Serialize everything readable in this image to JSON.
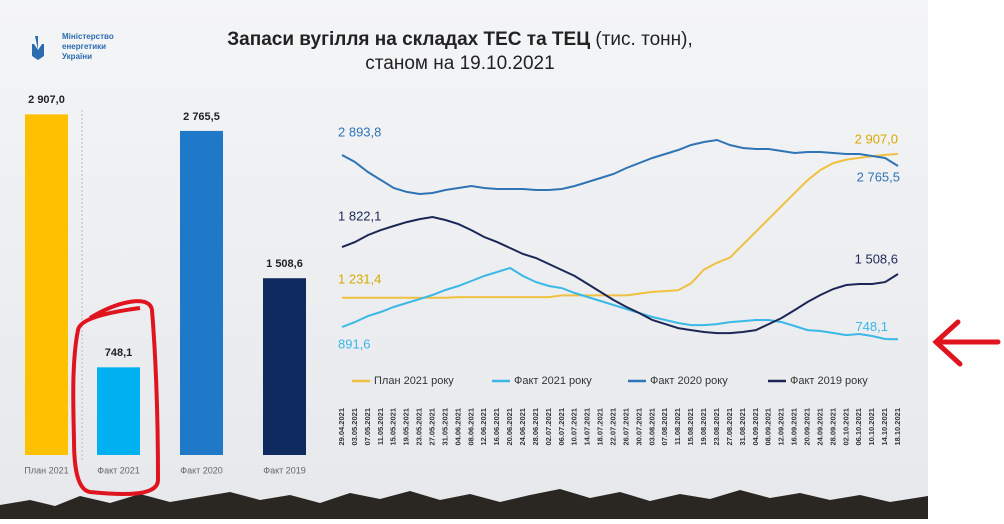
{
  "header": {
    "logo": [
      "Міністерство",
      "енергетики",
      "України"
    ],
    "title": "Запаси вугілля на складах ТЕС та ТЕЦ",
    "unit": "(тис. тонн),",
    "subtitle": "станом на 19.10.2021"
  },
  "chart_data": [
    {
      "type": "bar",
      "categories": [
        "План 2021",
        "Факт 2021",
        "Факт 2020",
        "Факт 2019"
      ],
      "values": [
        2907.0,
        748.1,
        2765.5,
        1508.6
      ],
      "value_labels": [
        "2 907,0",
        "748,1",
        "2 765,5",
        "1 508,6"
      ],
      "colors": [
        "#ffc000",
        "#00b0f0",
        "#1f78c8",
        "#0f2a5e"
      ],
      "ylim": [
        0,
        3200
      ],
      "grid": false
    },
    {
      "type": "line",
      "grid": false,
      "ylim": [
        0,
        3200
      ],
      "legend": "bottom",
      "categories": [
        "29.04.2021",
        "03.05.2021",
        "07.05.2021",
        "11.05.2021",
        "15.05.2021",
        "19.05.2021",
        "23.05.2021",
        "27.05.2021",
        "31.05.2021",
        "04.06.2021",
        "08.06.2021",
        "12.06.2021",
        "16.06.2021",
        "20.06.2021",
        "24.06.2021",
        "28.06.2021",
        "02.07.2021",
        "06.07.2021",
        "10.07.2021",
        "14.07.2021",
        "18.07.2021",
        "22.07.2021",
        "26.07.2021",
        "30.07.2021",
        "03.08.2021",
        "07.08.2021",
        "11.08.2021",
        "15.08.2021",
        "19.08.2021",
        "23.08.2021",
        "27.08.2021",
        "31.08.2021",
        "04.09.2021",
        "08.09.2021",
        "12.09.2021",
        "16.09.2021",
        "20.09.2021",
        "24.09.2021",
        "28.09.2021",
        "02.10.2021",
        "06.10.2021",
        "10.10.2021",
        "14.10.2021",
        "18.10.2021"
      ],
      "series": [
        {
          "name": "План 2021 року",
          "color": "#f0c040",
          "values": [
            1231.4,
            1231.4,
            1231.4,
            1231.4,
            1231.4,
            1231.4,
            1231.4,
            1231.4,
            1231.4,
            1240,
            1240,
            1240,
            1240,
            1240,
            1240,
            1240,
            1240,
            1260,
            1260,
            1260,
            1260,
            1260,
            1260,
            1280,
            1300,
            1310,
            1320,
            1400,
            1560,
            1640,
            1700,
            1850,
            2000,
            2150,
            2300,
            2450,
            2600,
            2720,
            2800,
            2840,
            2860,
            2880,
            2895,
            2907.0
          ],
          "value_labels": [
            "1 231,4",
            null,
            null,
            null,
            null,
            null,
            null,
            null,
            null,
            null,
            null,
            null,
            null,
            null,
            null,
            null,
            null,
            null,
            null,
            null,
            null,
            null,
            null,
            null,
            null,
            null,
            null,
            null,
            null,
            null,
            null,
            null,
            null,
            null,
            null,
            null,
            null,
            null,
            null,
            null,
            null,
            null,
            null,
            "2 907,0"
          ]
        },
        {
          "name": "Факт 2021 року",
          "color": "#3bb8e6",
          "values": [
            891.6,
            949,
            1019,
            1066,
            1124,
            1171,
            1217,
            1264,
            1322,
            1369,
            1427,
            1485,
            1532,
            1578,
            1485,
            1415,
            1369,
            1345,
            1287,
            1241,
            1194,
            1148,
            1101,
            1054,
            1008,
            973,
            938,
            914,
            914,
            926,
            949,
            961,
            973,
            973,
            949,
            903,
            856,
            845,
            822,
            798,
            810,
            787,
            752,
            748.1
          ],
          "value_labels": [
            "891,6",
            null,
            null,
            null,
            null,
            null,
            null,
            null,
            null,
            null,
            null,
            null,
            null,
            null,
            null,
            null,
            null,
            null,
            null,
            null,
            null,
            null,
            null,
            null,
            null,
            null,
            null,
            null,
            null,
            null,
            null,
            null,
            null,
            null,
            null,
            null,
            null,
            null,
            null,
            null,
            null,
            null,
            null,
            "748,1"
          ]
        },
        {
          "name": "Факт 2020 року",
          "color": "#2f74b5",
          "values": [
            2893.8,
            2813,
            2696,
            2603,
            2510,
            2464,
            2440,
            2452,
            2487,
            2510,
            2533,
            2510,
            2498,
            2498,
            2498,
            2487,
            2487,
            2498,
            2533,
            2580,
            2626,
            2673,
            2743,
            2801,
            2859,
            2906,
            2952,
            3010,
            3045,
            3069,
            3010,
            2976,
            2964,
            2964,
            2941,
            2917,
            2929,
            2929,
            2917,
            2906,
            2906,
            2882,
            2859,
            2765.5
          ],
          "value_labels": [
            "2 893,8",
            null,
            null,
            null,
            null,
            null,
            null,
            null,
            null,
            null,
            null,
            null,
            null,
            null,
            null,
            null,
            null,
            null,
            null,
            null,
            null,
            null,
            null,
            null,
            null,
            null,
            null,
            null,
            null,
            null,
            null,
            null,
            null,
            null,
            null,
            null,
            null,
            null,
            null,
            null,
            null,
            null,
            null,
            "2 765,5"
          ]
        },
        {
          "name": "Факт 2019 року",
          "color": "#1d2757",
          "values": [
            1822.1,
            1880,
            1962,
            2020,
            2067,
            2113,
            2148,
            2172,
            2137,
            2090,
            2020,
            1939,
            1880,
            1811,
            1741,
            1695,
            1625,
            1555,
            1485,
            1392,
            1299,
            1206,
            1124,
            1054,
            973,
            926,
            879,
            856,
            833,
            821,
            821,
            833,
            856,
            926,
            996,
            1089,
            1183,
            1264,
            1334,
            1381,
            1392,
            1392,
            1415,
            1508.6
          ],
          "value_labels": [
            "1 822,1",
            null,
            null,
            null,
            null,
            null,
            null,
            null,
            null,
            null,
            null,
            null,
            null,
            null,
            null,
            null,
            null,
            null,
            null,
            null,
            null,
            null,
            null,
            null,
            null,
            null,
            null,
            null,
            null,
            null,
            null,
            null,
            null,
            null,
            null,
            null,
            null,
            null,
            null,
            null,
            null,
            null,
            null,
            "1 508,6"
          ]
        }
      ]
    }
  ]
}
